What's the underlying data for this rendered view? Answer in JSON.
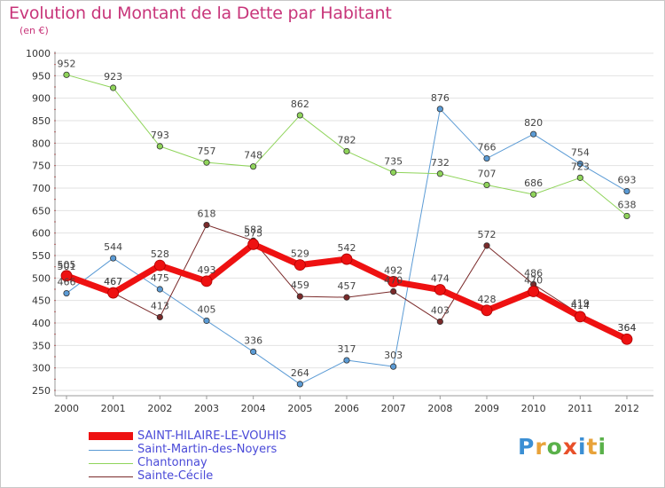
{
  "title": "Evolution du Montant de la Dette par Habitant",
  "subtitle": "(en €)",
  "logo": {
    "text": "Proxiti",
    "colors": [
      "#3b8fd4",
      "#e8a33a",
      "#5ab14a",
      "#e8502a",
      "#3b8fd4",
      "#e8a33a",
      "#5ab14a"
    ]
  },
  "chart_data": {
    "type": "line",
    "title": "Evolution du Montant de la Dette par Habitant",
    "ylabel": "(en €)",
    "xlabel": "",
    "x": [
      "2000",
      "2001",
      "2002",
      "2003",
      "2004",
      "2005",
      "2006",
      "2007",
      "2008",
      "2009",
      "2010",
      "2011",
      "2012"
    ],
    "ylim": [
      250,
      1000
    ],
    "yticks": [
      250,
      300,
      350,
      400,
      450,
      500,
      550,
      600,
      650,
      700,
      750,
      800,
      850,
      900,
      950,
      1000
    ],
    "grid": true,
    "legend_position": "bottom-left",
    "series": [
      {
        "name": "Saint-Martin-des-Noyers",
        "color": "#5b9bd5",
        "width": 1,
        "values": [
          466,
          544,
          475,
          405,
          336,
          264,
          317,
          303,
          876,
          766,
          820,
          754,
          693
        ]
      },
      {
        "name": "Chantonnay",
        "color": "#8fd45a",
        "width": 1,
        "values": [
          952,
          923,
          793,
          757,
          748,
          862,
          782,
          735,
          732,
          707,
          686,
          723,
          638
        ]
      },
      {
        "name": "Sainte-Cécile",
        "color": "#7a2a2a",
        "width": 1,
        "values": [
          501,
          467,
          413,
          618,
          583,
          459,
          457,
          470,
          403,
          572,
          486,
          419,
          364
        ]
      },
      {
        "name": "SAINT-HILAIRE-LE-VOUHIS",
        "color": "#ee1111",
        "width": 7,
        "values": [
          505,
          467,
          528,
          493,
          575,
          529,
          542,
          492,
          474,
          428,
          470,
          414,
          364
        ]
      }
    ]
  }
}
